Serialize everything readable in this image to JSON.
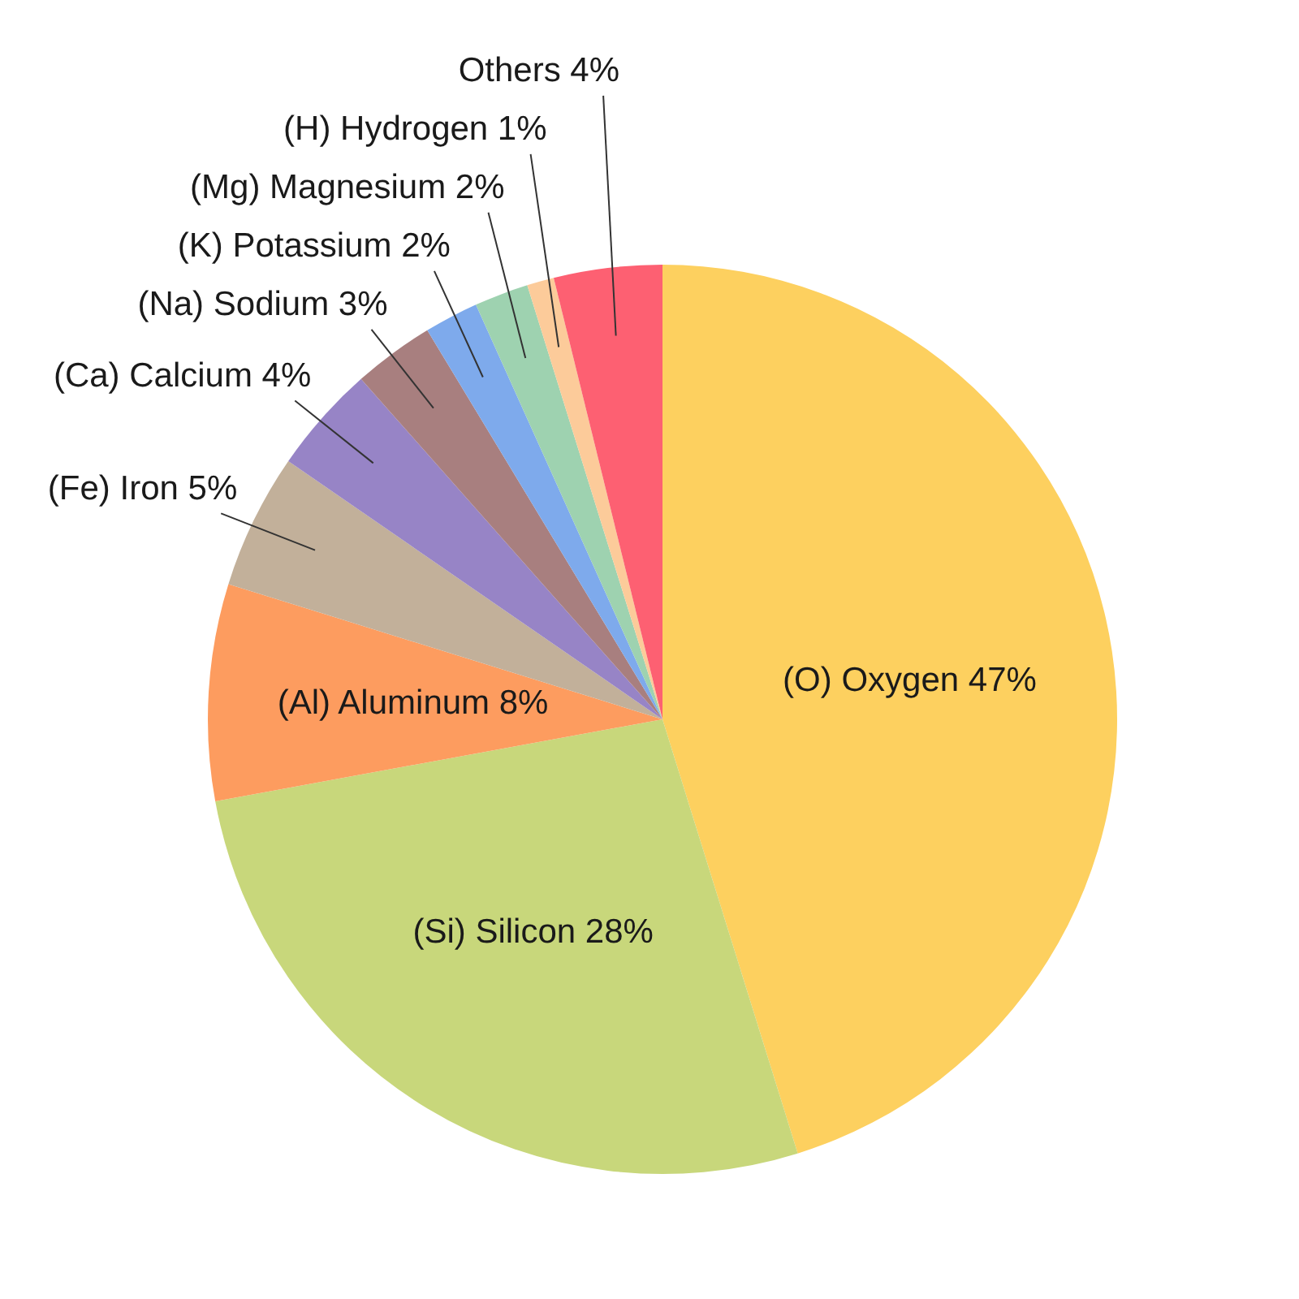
{
  "chart_data": {
    "type": "pie",
    "categories": [
      "(O) Oxygen",
      "(Si) Silicon",
      "(Al) Aluminum",
      "(Fe) Iron",
      "(Ca) Calcium",
      "(Na) Sodium",
      "(K) Potassium",
      "(Mg) Magnesium",
      "(H) Hydrogen",
      "Others"
    ],
    "values": [
      47,
      28,
      8,
      5,
      4,
      3,
      2,
      2,
      1,
      4
    ],
    "value_labels": [
      "47%",
      "28%",
      "8%",
      "5%",
      "4%",
      "3%",
      "2%",
      "2%",
      "1%",
      "4%"
    ],
    "colors": [
      "#fdd05f",
      "#c8d77b",
      "#fd9c5f",
      "#c2b09a",
      "#9784c6",
      "#a87f7f",
      "#7eaaec",
      "#9ed2b0",
      "#fccb9a",
      "#fd6072"
    ],
    "legend": false
  }
}
